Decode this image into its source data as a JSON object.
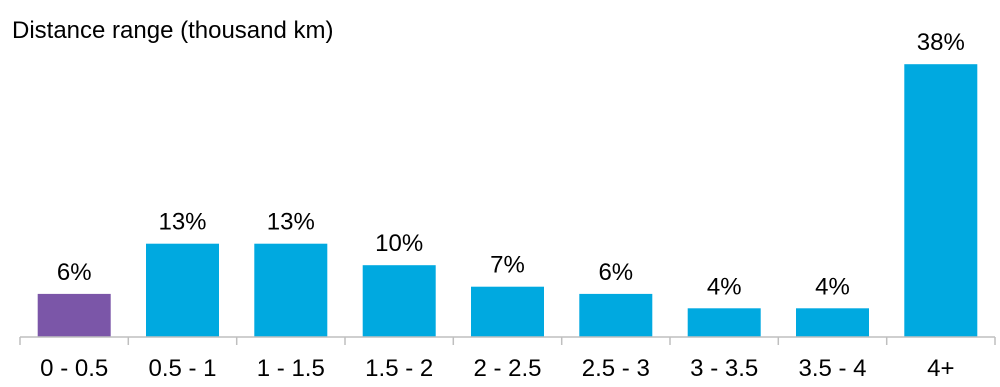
{
  "chart_data": {
    "type": "bar",
    "title": "Distance range (thousand km)",
    "categories": [
      "0 - 0.5",
      "0.5 - 1",
      "1 - 1.5",
      "1.5 - 2",
      "2 - 2.5",
      "2.5 - 3",
      "3 - 3.5",
      "3.5 - 4",
      "4+"
    ],
    "values": [
      6,
      13,
      13,
      10,
      7,
      6,
      4,
      4,
      38
    ],
    "data_labels": [
      "6%",
      "13%",
      "13%",
      "10%",
      "7%",
      "6%",
      "4%",
      "4%",
      "38%"
    ],
    "ylim": [
      0,
      40
    ],
    "grid": false,
    "legend": "none",
    "colors": {
      "highlight": "#7B56A8",
      "default": "#00A9E0",
      "axis": "#BFBFBF",
      "text": "#000000"
    }
  }
}
